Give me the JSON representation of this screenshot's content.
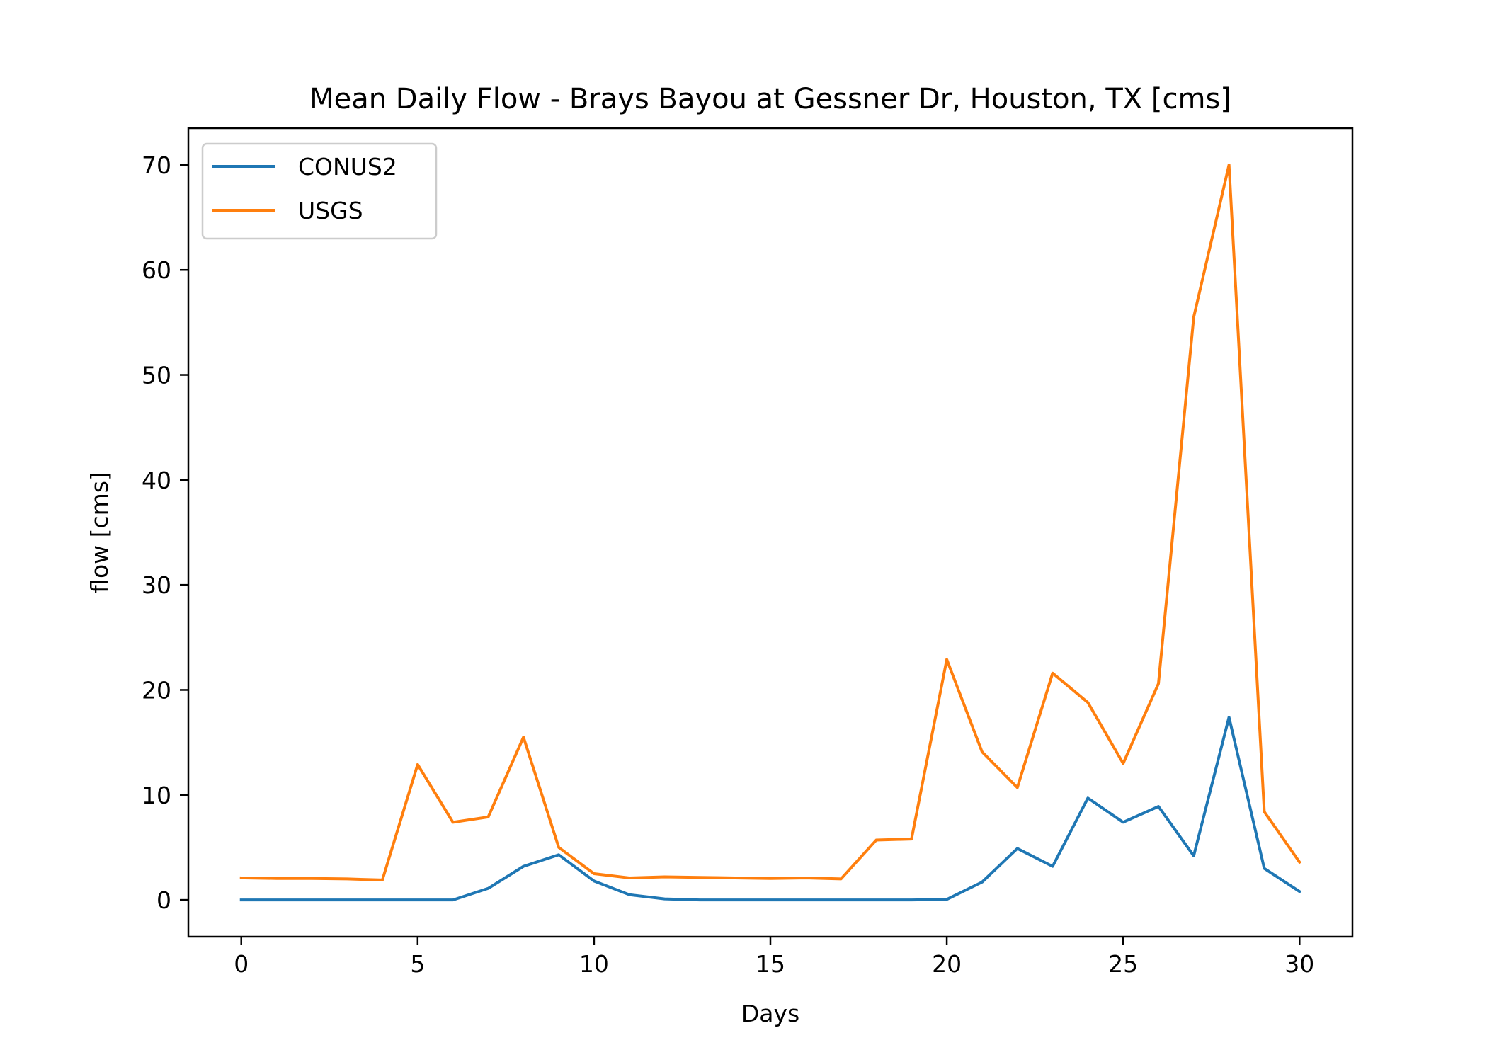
{
  "chart_data": {
    "type": "line",
    "title": "Mean Daily Flow - Brays Bayou at Gessner Dr, Houston, TX [cms]",
    "xlabel": "Days",
    "ylabel": "flow [cms]",
    "xlim": [
      -1.5,
      31.5
    ],
    "ylim": [
      -3.5,
      73.5
    ],
    "xticks": [
      0,
      5,
      10,
      15,
      20,
      25,
      30
    ],
    "yticks": [
      0,
      10,
      20,
      30,
      40,
      50,
      60,
      70
    ],
    "grid": false,
    "legend_position": "upper-left",
    "x": [
      0,
      1,
      2,
      3,
      4,
      5,
      6,
      7,
      8,
      9,
      10,
      11,
      12,
      13,
      14,
      15,
      16,
      17,
      18,
      19,
      20,
      21,
      22,
      23,
      24,
      25,
      26,
      27,
      28,
      29,
      30
    ],
    "series": [
      {
        "name": "CONUS2",
        "color": "#1f77b4",
        "values": [
          0.0,
          0.0,
          0.0,
          0.0,
          0.0,
          0.0,
          0.0,
          1.1,
          3.2,
          4.3,
          1.8,
          0.5,
          0.1,
          0.0,
          0.0,
          0.0,
          0.0,
          0.0,
          0.0,
          0.0,
          0.05,
          1.7,
          4.9,
          3.2,
          9.7,
          7.4,
          8.9,
          4.2,
          17.4,
          3.0,
          0.8
        ]
      },
      {
        "name": "USGS",
        "color": "#ff7f0e",
        "values": [
          2.1,
          2.05,
          2.05,
          2.0,
          1.9,
          12.9,
          7.4,
          7.9,
          15.5,
          5.0,
          2.5,
          2.1,
          2.2,
          2.15,
          2.1,
          2.05,
          2.1,
          2.0,
          5.7,
          5.8,
          22.9,
          14.1,
          10.7,
          21.6,
          18.8,
          13.0,
          20.6,
          55.5,
          70.0,
          8.4,
          3.6
        ]
      }
    ]
  }
}
